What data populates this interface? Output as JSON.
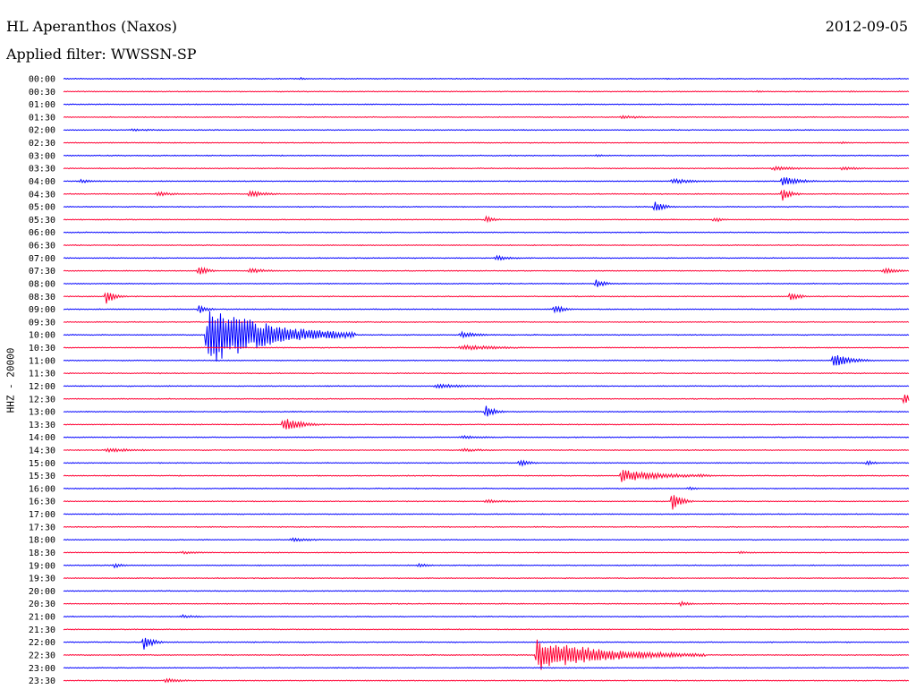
{
  "header": {
    "station": "HL Aperanthos (Naxos)",
    "date": "2012-09-05",
    "filter_label": "Applied filter: WWSSN-SP",
    "channel_label": "HHZ - 20000"
  },
  "colors": {
    "trace_a": "#0000ff",
    "trace_b": "#ff0033",
    "background": "#ffffff"
  },
  "chart_data": {
    "type": "line",
    "title": "HL Aperanthos (Naxos)",
    "subtitle": "Applied filter: WWSSN-SP",
    "ylabel": "HHZ - 20000",
    "xlabel": "",
    "grid": false,
    "legend": "none",
    "rows": [
      {
        "label": "00:00",
        "color": "#0000ff",
        "events": [
          {
            "t": 0.28,
            "amp": 1.5,
            "dur": 0.01
          }
        ]
      },
      {
        "label": "00:30",
        "color": "#ff0033",
        "events": [
          {
            "t": 0.82,
            "amp": 1.2,
            "dur": 0.01
          },
          {
            "t": 0.93,
            "amp": 1.2,
            "dur": 0.01
          }
        ]
      },
      {
        "label": "01:00",
        "color": "#0000ff",
        "events": []
      },
      {
        "label": "01:30",
        "color": "#ff0033",
        "events": [
          {
            "t": 0.66,
            "amp": 2,
            "dur": 0.03
          }
        ]
      },
      {
        "label": "02:00",
        "color": "#0000ff",
        "events": [
          {
            "t": 0.08,
            "amp": 1.2,
            "dur": 0.05
          }
        ]
      },
      {
        "label": "02:30",
        "color": "#ff0033",
        "events": [
          {
            "t": 0.92,
            "amp": 1.5,
            "dur": 0.01
          }
        ]
      },
      {
        "label": "03:00",
        "color": "#0000ff",
        "events": [
          {
            "t": 0.63,
            "amp": 1.2,
            "dur": 0.02
          }
        ]
      },
      {
        "label": "03:30",
        "color": "#ff0033",
        "events": [
          {
            "t": 0.84,
            "amp": 2.5,
            "dur": 0.03
          },
          {
            "t": 0.92,
            "amp": 2.5,
            "dur": 0.02
          }
        ]
      },
      {
        "label": "04:00",
        "color": "#0000ff",
        "events": [
          {
            "t": 0.02,
            "amp": 2,
            "dur": 0.02
          },
          {
            "t": 0.72,
            "amp": 3,
            "dur": 0.03
          },
          {
            "t": 0.85,
            "amp": 6,
            "dur": 0.02
          }
        ]
      },
      {
        "label": "04:30",
        "color": "#ff0033",
        "events": [
          {
            "t": 0.11,
            "amp": 3,
            "dur": 0.02
          },
          {
            "t": 0.22,
            "amp": 4,
            "dur": 0.02
          },
          {
            "t": 0.85,
            "amp": 8,
            "dur": 0.01
          }
        ]
      },
      {
        "label": "05:00",
        "color": "#0000ff",
        "events": [
          {
            "t": 0.7,
            "amp": 7,
            "dur": 0.01
          }
        ]
      },
      {
        "label": "05:30",
        "color": "#ff0033",
        "events": [
          {
            "t": 0.5,
            "amp": 4,
            "dur": 0.01
          },
          {
            "t": 0.77,
            "amp": 3,
            "dur": 0.01
          }
        ]
      },
      {
        "label": "06:00",
        "color": "#0000ff",
        "events": []
      },
      {
        "label": "06:30",
        "color": "#ff0033",
        "events": []
      },
      {
        "label": "07:00",
        "color": "#0000ff",
        "events": [
          {
            "t": 0.51,
            "amp": 3,
            "dur": 0.02
          }
        ]
      },
      {
        "label": "07:30",
        "color": "#ff0033",
        "events": [
          {
            "t": 0.16,
            "amp": 6,
            "dur": 0.01
          },
          {
            "t": 0.22,
            "amp": 3,
            "dur": 0.02
          },
          {
            "t": 0.97,
            "amp": 3,
            "dur": 0.02
          }
        ]
      },
      {
        "label": "08:00",
        "color": "#0000ff",
        "events": [
          {
            "t": 0.63,
            "amp": 5,
            "dur": 0.01
          }
        ]
      },
      {
        "label": "08:30",
        "color": "#ff0033",
        "events": [
          {
            "t": 0.05,
            "amp": 9,
            "dur": 0.01
          },
          {
            "t": 0.86,
            "amp": 6,
            "dur": 0.01
          }
        ]
      },
      {
        "label": "09:00",
        "color": "#0000ff",
        "events": [
          {
            "t": 0.16,
            "amp": 5,
            "dur": 0.01
          },
          {
            "t": 0.58,
            "amp": 6,
            "dur": 0.01
          }
        ]
      },
      {
        "label": "09:30",
        "color": "#ff0033",
        "events": []
      },
      {
        "label": "10:00",
        "color": "#0000ff",
        "events": [
          {
            "t": 0.17,
            "amp": 35,
            "dur": 0.07
          },
          {
            "t": 0.3,
            "amp": 3,
            "dur": 0.02
          },
          {
            "t": 0.47,
            "amp": 4,
            "dur": 0.02
          }
        ]
      },
      {
        "label": "10:30",
        "color": "#ff0033",
        "events": [
          {
            "t": 0.47,
            "amp": 3,
            "dur": 0.05
          }
        ]
      },
      {
        "label": "11:00",
        "color": "#0000ff",
        "events": [
          {
            "t": 0.91,
            "amp": 8,
            "dur": 0.02
          }
        ]
      },
      {
        "label": "11:30",
        "color": "#ff0033",
        "events": []
      },
      {
        "label": "12:00",
        "color": "#0000ff",
        "events": [
          {
            "t": 0.44,
            "amp": 2.5,
            "dur": 0.04
          }
        ]
      },
      {
        "label": "12:30",
        "color": "#ff0033",
        "events": [
          {
            "t": 0.995,
            "amp": 8,
            "dur": 0.005
          }
        ]
      },
      {
        "label": "13:00",
        "color": "#0000ff",
        "events": [
          {
            "t": 0.5,
            "amp": 7,
            "dur": 0.01
          }
        ]
      },
      {
        "label": "13:30",
        "color": "#ff0033",
        "events": [
          {
            "t": 0.26,
            "amp": 8,
            "dur": 0.02
          }
        ]
      },
      {
        "label": "14:00",
        "color": "#0000ff",
        "events": [
          {
            "t": 0.47,
            "amp": 2,
            "dur": 0.03
          }
        ]
      },
      {
        "label": "14:30",
        "color": "#ff0033",
        "events": [
          {
            "t": 0.05,
            "amp": 2.5,
            "dur": 0.04
          },
          {
            "t": 0.47,
            "amp": 2,
            "dur": 0.03
          }
        ]
      },
      {
        "label": "15:00",
        "color": "#0000ff",
        "events": [
          {
            "t": 0.54,
            "amp": 5,
            "dur": 0.01
          },
          {
            "t": 0.95,
            "amp": 3,
            "dur": 0.01
          }
        ]
      },
      {
        "label": "15:30",
        "color": "#ff0033",
        "events": [
          {
            "t": 0.66,
            "amp": 7,
            "dur": 0.05
          },
          {
            "t": 0.75,
            "amp": 2,
            "dur": 0.02
          }
        ]
      },
      {
        "label": "16:00",
        "color": "#0000ff",
        "events": [
          {
            "t": 0.74,
            "amp": 2,
            "dur": 0.01
          }
        ]
      },
      {
        "label": "16:30",
        "color": "#ff0033",
        "events": [
          {
            "t": 0.72,
            "amp": 12,
            "dur": 0.01
          },
          {
            "t": 0.5,
            "amp": 2,
            "dur": 0.03
          }
        ]
      },
      {
        "label": "17:00",
        "color": "#0000ff",
        "events": []
      },
      {
        "label": "17:30",
        "color": "#ff0033",
        "events": []
      },
      {
        "label": "18:00",
        "color": "#0000ff",
        "events": [
          {
            "t": 0.27,
            "amp": 2,
            "dur": 0.03
          }
        ]
      },
      {
        "label": "18:30",
        "color": "#ff0033",
        "events": [
          {
            "t": 0.14,
            "amp": 1.5,
            "dur": 0.03
          },
          {
            "t": 0.8,
            "amp": 1.5,
            "dur": 0.02
          }
        ]
      },
      {
        "label": "19:00",
        "color": "#0000ff",
        "events": [
          {
            "t": 0.06,
            "amp": 3,
            "dur": 0.01
          },
          {
            "t": 0.42,
            "amp": 3,
            "dur": 0.01
          }
        ]
      },
      {
        "label": "19:30",
        "color": "#ff0033",
        "events": []
      },
      {
        "label": "20:00",
        "color": "#0000ff",
        "events": []
      },
      {
        "label": "20:30",
        "color": "#ff0033",
        "events": [
          {
            "t": 0.73,
            "amp": 3,
            "dur": 0.01
          }
        ]
      },
      {
        "label": "21:00",
        "color": "#0000ff",
        "events": [
          {
            "t": 0.14,
            "amp": 2,
            "dur": 0.02
          }
        ]
      },
      {
        "label": "21:30",
        "color": "#ff0033",
        "events": []
      },
      {
        "label": "22:00",
        "color": "#0000ff",
        "events": [
          {
            "t": 0.095,
            "amp": 10,
            "dur": 0.01
          }
        ]
      },
      {
        "label": "22:30",
        "color": "#ff0033",
        "events": [
          {
            "t": 0.56,
            "amp": 18,
            "dur": 0.08
          },
          {
            "t": 0.67,
            "amp": 2,
            "dur": 0.03
          }
        ]
      },
      {
        "label": "23:00",
        "color": "#0000ff",
        "events": []
      },
      {
        "label": "23:30",
        "color": "#ff0033",
        "events": [
          {
            "t": 0.12,
            "amp": 3,
            "dur": 0.02
          }
        ]
      }
    ]
  }
}
